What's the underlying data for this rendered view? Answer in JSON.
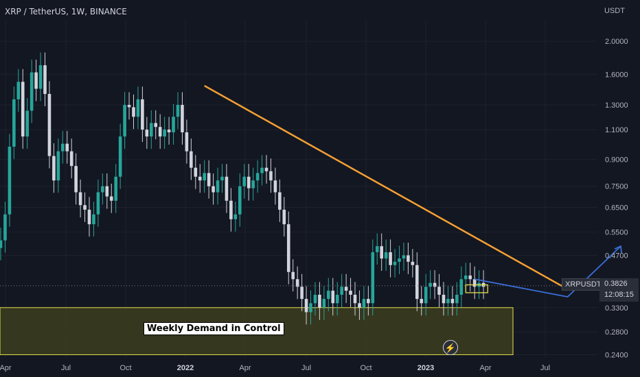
{
  "header": {
    "title": "XRP / TetherUS, 1W, BINANCE"
  },
  "price_axis_unit": "USDT",
  "current": {
    "symbol": "XRPUSDT",
    "price": "0.3826",
    "countdown": "12:08:15",
    "value": 0.3826
  },
  "annotation": {
    "zone_label": "Weekly Demand in Control",
    "icon": "lightning-bolt-icon"
  },
  "colors": {
    "background": "#131722",
    "up": "#26a69a",
    "down": "#d1d4dc",
    "trendline": "#f5a033",
    "zone": "#3d3d1f",
    "zone_border": "#e6e04a",
    "projection": "#3a6fd8"
  },
  "chart_data": {
    "type": "candlestick",
    "title": "XRP / TetherUS, 1W, BINANCE",
    "ylabel": "USDT",
    "yscale": "log",
    "ylim": [
      0.235,
      2.3
    ],
    "y_ticks": [
      "2.0000",
      "1.6000",
      "1.3000",
      "1.1000",
      "0.9000",
      "0.7500",
      "0.6500",
      "0.5500",
      "0.4700",
      "0.3300",
      "0.2800",
      "0.2400"
    ],
    "x_ticks": [
      {
        "label": "Apr",
        "bold": false
      },
      {
        "label": "Jul",
        "bold": false
      },
      {
        "label": "Oct",
        "bold": false
      },
      {
        "label": "2022",
        "bold": true
      },
      {
        "label": "Apr",
        "bold": false
      },
      {
        "label": "Jul",
        "bold": false
      },
      {
        "label": "Oct",
        "bold": false
      },
      {
        "label": "2023",
        "bold": true
      },
      {
        "label": "Apr",
        "bold": false
      },
      {
        "label": "Jul",
        "bold": false
      }
    ],
    "closes": [
      0.52,
      0.62,
      0.98,
      1.35,
      1.52,
      1.05,
      1.25,
      1.62,
      1.45,
      1.7,
      1.4,
      0.92,
      0.78,
      0.95,
      1.0,
      0.95,
      0.86,
      0.72,
      0.66,
      0.64,
      0.58,
      0.62,
      0.72,
      0.75,
      0.7,
      0.68,
      0.8,
      1.05,
      1.3,
      1.28,
      1.2,
      1.35,
      1.1,
      1.05,
      1.15,
      1.12,
      1.05,
      1.1,
      1.08,
      1.2,
      1.3,
      1.08,
      0.95,
      0.85,
      0.8,
      0.78,
      0.82,
      0.75,
      0.72,
      0.78,
      0.8,
      0.68,
      0.6,
      0.62,
      0.75,
      0.8,
      0.74,
      0.78,
      0.82,
      0.85,
      0.83,
      0.78,
      0.72,
      0.64,
      0.58,
      0.42,
      0.4,
      0.38,
      0.35,
      0.32,
      0.34,
      0.36,
      0.33,
      0.35,
      0.37,
      0.34,
      0.36,
      0.38,
      0.37,
      0.36,
      0.34,
      0.33,
      0.35,
      0.34,
      0.48,
      0.5,
      0.46,
      0.48,
      0.44,
      0.45,
      0.46,
      0.47,
      0.45,
      0.44,
      0.35,
      0.34,
      0.38,
      0.39,
      0.38,
      0.36,
      0.34,
      0.35,
      0.34,
      0.36,
      0.4,
      0.41,
      0.4,
      0.38,
      0.39,
      0.38
    ],
    "demand_zone": [
      0.24,
      0.33
    ],
    "trendline": [
      {
        "week": 46,
        "price": 1.48
      },
      {
        "week": 127,
        "price": 0.38
      }
    ],
    "projection": [
      {
        "week": 128,
        "price": 0.355
      },
      {
        "week": 140,
        "price": 0.5
      }
    ]
  }
}
